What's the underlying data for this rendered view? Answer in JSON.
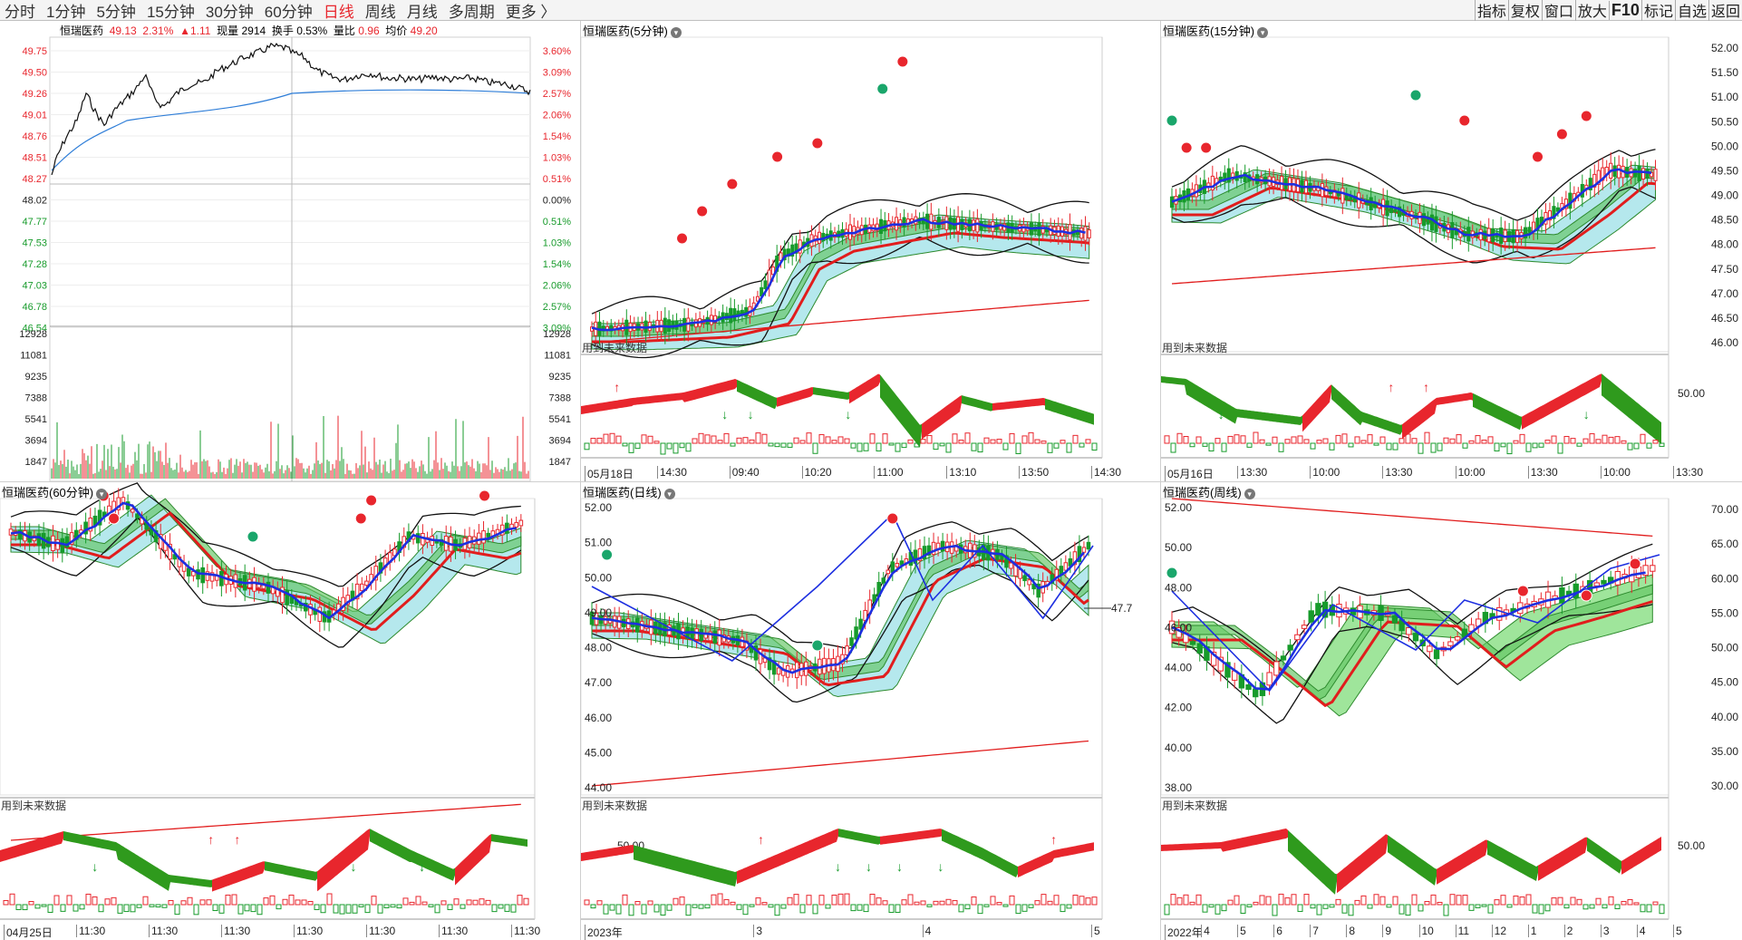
{
  "toolbar": {
    "tabs": [
      {
        "label": "分时",
        "active": false
      },
      {
        "label": "1分钟",
        "active": false
      },
      {
        "label": "5分钟",
        "active": false
      },
      {
        "label": "15分钟",
        "active": false
      },
      {
        "label": "30分钟",
        "active": false
      },
      {
        "label": "60分钟",
        "active": false
      },
      {
        "label": "日线",
        "active": true
      },
      {
        "label": "周线",
        "active": false
      },
      {
        "label": "月线",
        "active": false
      },
      {
        "label": "多周期",
        "active": false
      },
      {
        "label": "更多 〉",
        "active": false
      }
    ],
    "right_buttons": [
      "指标",
      "复权",
      "窗口",
      "放大",
      "F10",
      "标记",
      "自选",
      "返回"
    ]
  },
  "intraday": {
    "stock_name": "恒瑞医药",
    "price": "49.13",
    "pct": "2.31%",
    "change": "▲1.11",
    "volume_label": "现量",
    "volume": "2914",
    "turnover_label": "换手",
    "turnover": "0.53%",
    "ratio_label": "量比",
    "ratio": "0.96",
    "avg_label": "均价",
    "avg": "49.20",
    "price_axis": [
      "49.75",
      "49.50",
      "49.26",
      "49.01",
      "48.76",
      "48.51",
      "48.27",
      "48.02",
      "47.77",
      "47.53",
      "47.28",
      "47.03",
      "46.78",
      "46.54"
    ],
    "pct_axis": [
      "3.60%",
      "3.09%",
      "2.57%",
      "2.06%",
      "1.54%",
      "1.03%",
      "0.51%",
      "0.00%",
      "0.51%",
      "1.03%",
      "1.54%",
      "2.06%",
      "2.57%",
      "3.09%"
    ],
    "vol_axis": [
      "12928",
      "11081",
      "9235",
      "7388",
      "5541",
      "3694",
      "1847"
    ],
    "colors": {
      "up": "#e8262d",
      "down": "#179b2b",
      "price_line": "#111111",
      "avg_line": "#2f7ed8"
    }
  },
  "panels": {
    "p5": {
      "title": "恒瑞医药(5分钟)",
      "future": "用到未来数据",
      "sub_axis": "",
      "time_labels": [
        "05月18日",
        "14:30",
        "09:40",
        "10:20",
        "11:00",
        "13:10",
        "13:50",
        "14:30"
      ]
    },
    "p15": {
      "title": "恒瑞医药(15分钟)",
      "future": "用到未来数据",
      "price_axis": [
        "52.00",
        "51.50",
        "51.00",
        "50.50",
        "50.00",
        "49.50",
        "49.00",
        "48.50",
        "48.00"
      ],
      "right_axis": [
        "52.00",
        "51.50",
        "51.00",
        "50.50",
        "50.00",
        "49.50",
        "49.00",
        "48.50",
        "48.00",
        "47.50",
        "47.00",
        "46.50",
        "46.00"
      ],
      "sub_axis": "50.00",
      "time_labels": [
        "05月16日",
        "13:30",
        "10:00",
        "13:30",
        "10:00",
        "13:30",
        "10:00",
        "13:30"
      ]
    },
    "p60": {
      "title": "恒瑞医药(60分钟)",
      "future": "用到未来数据",
      "time_labels": [
        "04月25日",
        "11:30",
        "11:30",
        "11:30",
        "11:30",
        "11:30",
        "11:30",
        "11:30"
      ]
    },
    "pday": {
      "title": "恒瑞医药(日线)",
      "future": "用到未来数据",
      "price_axis": [
        "52.00",
        "51.00",
        "50.00",
        "49.00",
        "48.00",
        "47.00",
        "46.00",
        "45.00",
        "44.00"
      ],
      "sub_axis": "50.00",
      "last_price": "47.7",
      "time_labels": [
        "2023年",
        "3",
        "4",
        "5"
      ]
    },
    "pweek": {
      "title": "恒瑞医药(周线)",
      "future": "用到未来数据",
      "price_axis": [
        "52.00",
        "50.00",
        "48.00",
        "46.00",
        "44.00",
        "42.00",
        "40.00",
        "38.00"
      ],
      "right_axis": [
        "70.00",
        "65.00",
        "60.00",
        "55.00",
        "50.00",
        "45.00",
        "40.00",
        "35.00",
        "30.00"
      ],
      "sub_axis": "50.00",
      "time_labels": [
        "2022年",
        "4",
        "5",
        "6",
        "7",
        "8",
        "9",
        "10",
        "11",
        "12",
        "1",
        "2",
        "3",
        "4",
        "5"
      ]
    }
  }
}
